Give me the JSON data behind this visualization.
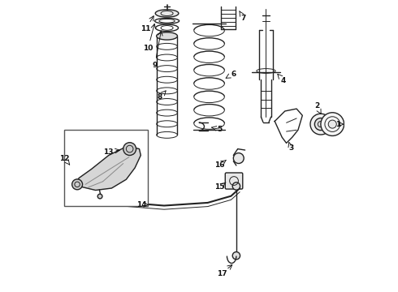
{
  "bg_color": "#ffffff",
  "line_color": "#222222",
  "label_color": "#111111",
  "fig_width": 4.9,
  "fig_height": 3.6,
  "dpi": 100
}
